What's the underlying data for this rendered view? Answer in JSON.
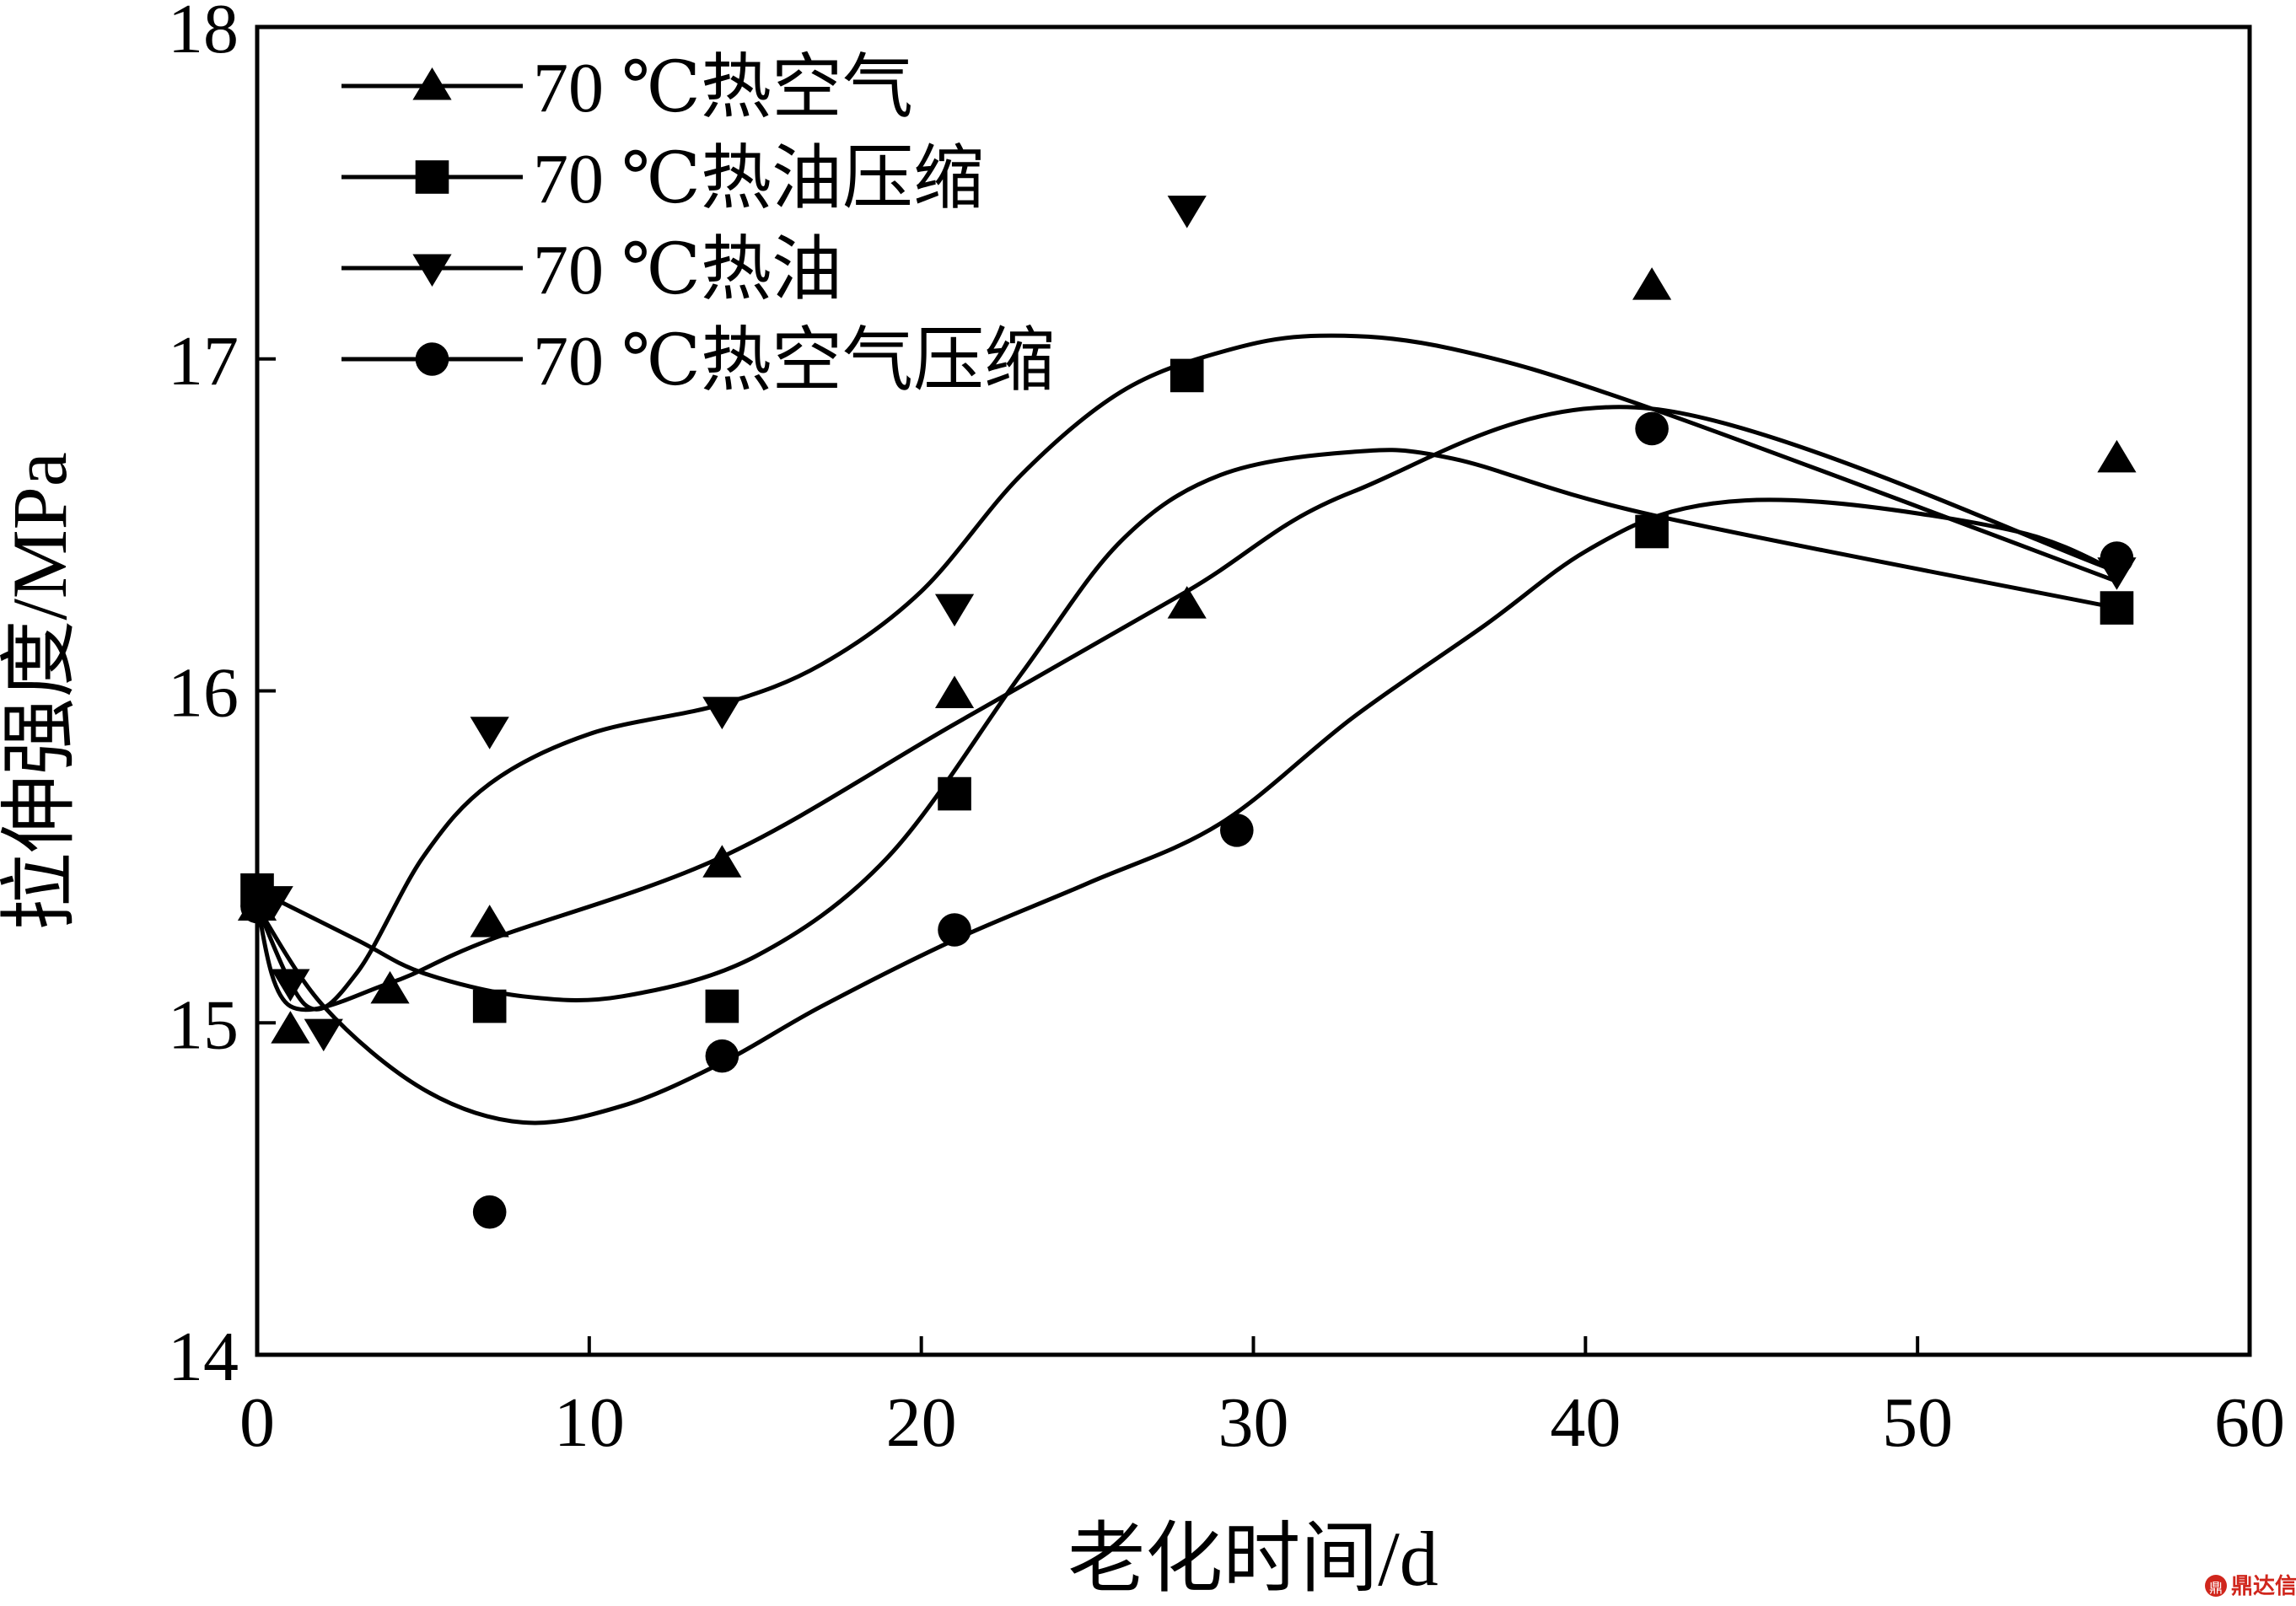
{
  "chart_data": {
    "type": "scatter",
    "xlabel": "老化时间/d",
    "ylabel": "拉伸强度/MPa",
    "xlim": [
      0,
      60
    ],
    "ylim": [
      14,
      18
    ],
    "xticks": [
      "0",
      "10",
      "20",
      "30",
      "40",
      "50",
      "60"
    ],
    "yticks": [
      "14",
      "15",
      "16",
      "17",
      "18"
    ],
    "grid": false,
    "legend_position": "top-left",
    "series": [
      {
        "name": "70 ℃热空气",
        "marker": "triangle-up",
        "points": [
          [
            0,
            15.35
          ],
          [
            1,
            14.98
          ],
          [
            4,
            15.1
          ],
          [
            7,
            15.3
          ],
          [
            14,
            15.48
          ],
          [
            21,
            15.99
          ],
          [
            28,
            16.26
          ],
          [
            42,
            17.22
          ],
          [
            56,
            16.7
          ]
        ],
        "fit": [
          [
            0,
            15.35
          ],
          [
            1,
            15.05
          ],
          [
            4,
            15.12
          ],
          [
            7,
            15.25
          ],
          [
            14,
            15.5
          ],
          [
            21,
            15.9
          ],
          [
            28,
            16.3
          ],
          [
            33,
            16.6
          ],
          [
            42,
            16.85
          ],
          [
            56,
            16.36
          ]
        ]
      },
      {
        "name": "70 ℃热油压缩",
        "marker": "square",
        "points": [
          [
            0,
            15.4
          ],
          [
            7,
            15.05
          ],
          [
            14,
            15.05
          ],
          [
            21,
            15.69
          ],
          [
            28,
            16.95
          ],
          [
            42,
            16.48
          ],
          [
            56,
            16.25
          ]
        ],
        "fit": [
          [
            0,
            15.4
          ],
          [
            3,
            15.25
          ],
          [
            5,
            15.15
          ],
          [
            8,
            15.08
          ],
          [
            11,
            15.08
          ],
          [
            15,
            15.2
          ],
          [
            19,
            15.5
          ],
          [
            23,
            16.05
          ],
          [
            26,
            16.45
          ],
          [
            29,
            16.65
          ],
          [
            33,
            16.72
          ],
          [
            36,
            16.7
          ],
          [
            42,
            16.53
          ],
          [
            56,
            16.25
          ]
        ]
      },
      {
        "name": "70 ℃热油",
        "marker": "triangle-down",
        "points": [
          [
            0.5,
            15.37
          ],
          [
            1,
            15.12
          ],
          [
            2,
            14.97
          ],
          [
            7,
            15.88
          ],
          [
            14,
            15.94
          ],
          [
            21,
            16.25
          ],
          [
            28,
            17.45
          ],
          [
            56,
            16.36
          ]
        ],
        "fit": [
          [
            0,
            15.35
          ],
          [
            1.5,
            15.05
          ],
          [
            3,
            15.15
          ],
          [
            5,
            15.5
          ],
          [
            7,
            15.72
          ],
          [
            10,
            15.87
          ],
          [
            14,
            15.96
          ],
          [
            17,
            16.08
          ],
          [
            20,
            16.3
          ],
          [
            23,
            16.65
          ],
          [
            26,
            16.9
          ],
          [
            29,
            17.02
          ],
          [
            32,
            17.07
          ],
          [
            36,
            17.03
          ],
          [
            42,
            16.85
          ],
          [
            56,
            16.33
          ]
        ]
      },
      {
        "name": "70 ℃热空气压缩",
        "marker": "circle",
        "points": [
          [
            0,
            15.35
          ],
          [
            7,
            14.43
          ],
          [
            14,
            14.9
          ],
          [
            21,
            15.28
          ],
          [
            29.5,
            15.58
          ],
          [
            42,
            16.79
          ],
          [
            56,
            16.4
          ]
        ],
        "fit": [
          [
            0,
            15.35
          ],
          [
            2,
            15.05
          ],
          [
            5,
            14.8
          ],
          [
            8,
            14.7
          ],
          [
            11,
            14.75
          ],
          [
            14,
            14.88
          ],
          [
            17,
            15.05
          ],
          [
            21,
            15.25
          ],
          [
            25,
            15.42
          ],
          [
            29,
            15.6
          ],
          [
            33,
            15.92
          ],
          [
            37,
            16.2
          ],
          [
            40,
            16.42
          ],
          [
            43,
            16.55
          ],
          [
            47,
            16.57
          ],
          [
            53,
            16.48
          ],
          [
            56,
            16.36
          ]
        ]
      }
    ]
  },
  "watermark": {
    "badge": "鼎",
    "text": "鼎达信"
  }
}
